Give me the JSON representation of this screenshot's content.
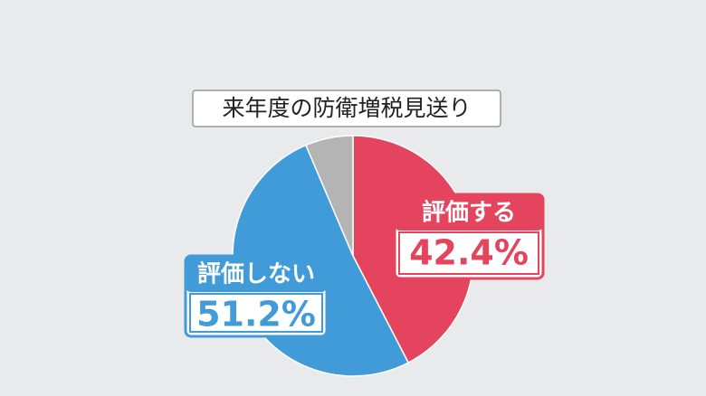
{
  "chart_data": {
    "type": "pie",
    "title": "来年度の防衛増税見送り",
    "categories": [
      "評価する",
      "評価しない",
      null
    ],
    "values": [
      42.4,
      51.2,
      6.4
    ],
    "value_labels": [
      "42.4%",
      "51.2%",
      null
    ],
    "colors": [
      "#e4445e",
      "#419bd8",
      "#b4b4b4"
    ]
  }
}
